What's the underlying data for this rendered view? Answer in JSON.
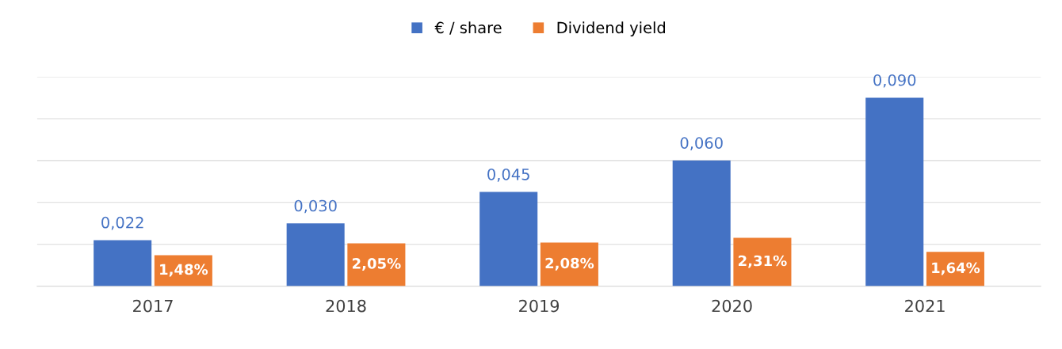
{
  "chart_data": {
    "type": "bar",
    "categories": [
      "2017",
      "2018",
      "2019",
      "2020",
      "2021"
    ],
    "series": [
      {
        "name": "€ / share",
        "color": "#4472c4",
        "values": [
          0.022,
          0.03,
          0.045,
          0.06,
          0.09
        ],
        "value_labels": [
          "0,022",
          "0,030",
          "0,045",
          "0,060",
          "0,090"
        ]
      },
      {
        "name": "Dividend yield",
        "color": "#ed7d31",
        "axis": "y2",
        "values": [
          1.48,
          2.05,
          2.08,
          2.31,
          1.64
        ],
        "value_labels": [
          "1,48%",
          "2,05%",
          "2,08%",
          "2,31%",
          "1,64%"
        ]
      }
    ],
    "ylim": [
      0,
      0.1
    ],
    "yticks": [
      {
        "value": 0,
        "label": null
      },
      {
        "value": 0.02,
        "label": null
      },
      {
        "value": 0.04,
        "label": null
      },
      {
        "value": 0.06,
        "label": null
      },
      {
        "value": 0.08,
        "label": null
      },
      {
        "value": 0.1,
        "label": null
      }
    ],
    "y2lim": [
      0,
      10
    ],
    "tick_labels": "x",
    "grid": "y",
    "legend": "top"
  }
}
